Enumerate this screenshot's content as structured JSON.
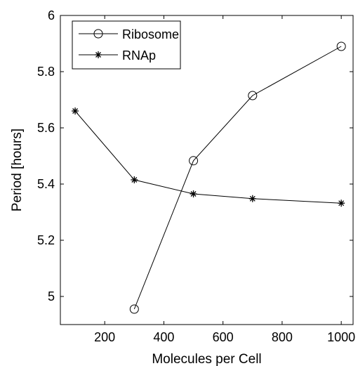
{
  "chart_data": {
    "type": "line",
    "title": "",
    "xlabel": "Molecules per Cell",
    "ylabel": "Period [hours]",
    "xlim": [
      50,
      1040
    ],
    "ylim": [
      4.9,
      6.0
    ],
    "xticks": [
      200,
      400,
      600,
      800,
      1000
    ],
    "yticks": [
      5,
      5.2,
      5.4,
      5.6,
      5.8,
      6
    ],
    "grid": false,
    "legend_position": "top-left",
    "series": [
      {
        "name": "Ribosome",
        "marker": "circle",
        "x": [
          300,
          500,
          700,
          1000
        ],
        "y": [
          4.955,
          5.483,
          5.715,
          5.89
        ]
      },
      {
        "name": "RNAp",
        "marker": "asterisk",
        "x": [
          100,
          300,
          500,
          700,
          1000
        ],
        "y": [
          5.66,
          5.415,
          5.365,
          5.348,
          5.332
        ]
      }
    ],
    "colors": {
      "line": "#000000",
      "background": "#ffffff"
    }
  }
}
